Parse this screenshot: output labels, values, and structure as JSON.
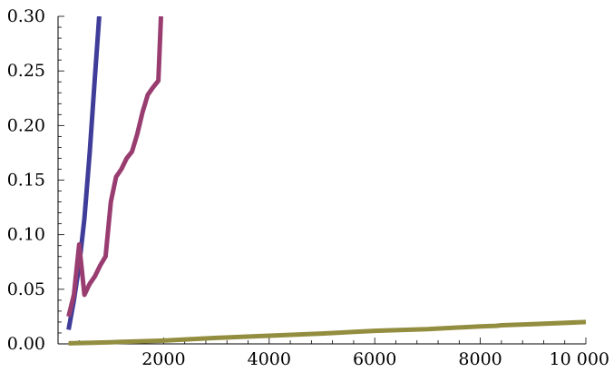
{
  "chart_data": {
    "type": "line",
    "title": "",
    "xlabel": "",
    "ylabel": "",
    "xlim": [
      0,
      10000
    ],
    "ylim": [
      0,
      0.3
    ],
    "grid": false,
    "legend": "none",
    "x_ticks": [
      {
        "value": 2000,
        "label": "2000"
      },
      {
        "value": 4000,
        "label": "4000"
      },
      {
        "value": 6000,
        "label": "6000"
      },
      {
        "value": 8000,
        "label": "8000"
      },
      {
        "value": 10000,
        "label": "10 000"
      }
    ],
    "y_ticks": [
      {
        "value": 0,
        "label": "0.00"
      },
      {
        "value": 0.05,
        "label": "0.05"
      },
      {
        "value": 0.1,
        "label": "0.10"
      },
      {
        "value": 0.15,
        "label": "0.15"
      },
      {
        "value": 0.2,
        "label": "0.20"
      },
      {
        "value": 0.25,
        "label": "0.25"
      },
      {
        "value": 0.3,
        "label": "0.30"
      }
    ],
    "series": [
      {
        "color": "#3f3d99",
        "points": [
          [
            200,
            0.013
          ],
          [
            300,
            0.04
          ],
          [
            400,
            0.072
          ],
          [
            500,
            0.115
          ],
          [
            600,
            0.175
          ],
          [
            700,
            0.245
          ],
          [
            780,
            0.3
          ]
        ]
      },
      {
        "color": "#993d71",
        "points": [
          [
            200,
            0.025
          ],
          [
            300,
            0.045
          ],
          [
            400,
            0.091
          ],
          [
            500,
            0.045
          ],
          [
            600,
            0.055
          ],
          [
            700,
            0.062
          ],
          [
            800,
            0.072
          ],
          [
            900,
            0.08
          ],
          [
            1000,
            0.13
          ],
          [
            1100,
            0.153
          ],
          [
            1200,
            0.16
          ],
          [
            1300,
            0.17
          ],
          [
            1400,
            0.176
          ],
          [
            1500,
            0.192
          ],
          [
            1600,
            0.212
          ],
          [
            1700,
            0.228
          ],
          [
            1800,
            0.235
          ],
          [
            1900,
            0.241
          ],
          [
            1950,
            0.3
          ]
        ]
      },
      {
        "color": "#928d3f",
        "points": [
          [
            200,
            0.0005
          ],
          [
            1000,
            0.0015
          ],
          [
            2000,
            0.003
          ],
          [
            3000,
            0.0055
          ],
          [
            4000,
            0.0075
          ],
          [
            5000,
            0.0095
          ],
          [
            6000,
            0.012
          ],
          [
            7000,
            0.0135
          ],
          [
            8000,
            0.016
          ],
          [
            8300,
            0.0165
          ],
          [
            8400,
            0.017
          ],
          [
            9000,
            0.018
          ],
          [
            10000,
            0.02
          ]
        ]
      }
    ]
  }
}
